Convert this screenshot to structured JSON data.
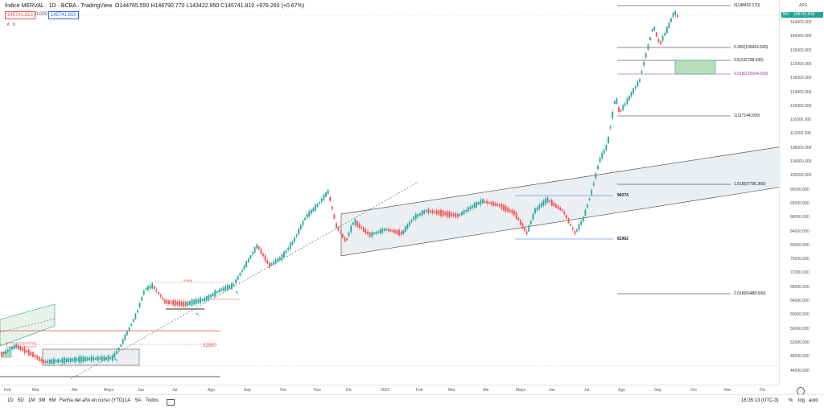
{
  "header": {
    "symbol": "Índice MERVAL · 1D · BCBA · TradingView",
    "ohlc": "O144765.550 H146790.770 L143422.950 C145741.810 +976.260 (+0.67%)",
    "price_sell": "145741.810",
    "spread": "0.000",
    "price_buy": "145741.810",
    "indicator_toggle": "∧",
    "indicator_count": "8"
  },
  "price_axis": {
    "currency": "ARS",
    "last_price": "145741.810",
    "last_tag": "MV",
    "ticks": [
      "144000.000",
      "140000.000",
      "136000.000",
      "132000.000",
      "128000.000",
      "124000.000",
      "120000.000",
      "116000.000",
      "112000.000",
      "108000.000",
      "104000.000",
      "100000.000",
      "96000.000",
      "92000.000",
      "88000.000",
      "84000.000",
      "80000.000",
      "76000.000",
      "72000.000",
      "68000.000",
      "64000.000",
      "60000.000",
      "56000.000",
      "52000.000",
      "48000.000",
      "44000.000"
    ]
  },
  "time_axis": {
    "ticks": [
      "Feb",
      "Mar",
      "Abr",
      "Mayo",
      "Jun",
      "Jul",
      "Ago",
      "Sep",
      "Oct",
      "Nov",
      "Dic",
      "2022",
      "Feb",
      "Mar",
      "Abr",
      "Mayo",
      "Jun",
      "Jul",
      "Ago",
      "Sep",
      "Oct",
      "Nov",
      "Dic"
    ]
  },
  "fib_levels": [
    {
      "label": "0(148452.170)",
      "color": "#131722"
    },
    {
      "label": "0.382(136492.640)",
      "color": "#131722"
    },
    {
      "label": "0.5(132798.335)",
      "color": "#131722"
    },
    {
      "label": "0.618(129104.030)",
      "color": "#9c27b0"
    },
    {
      "label": "1(117144.500)",
      "color": "#131722"
    },
    {
      "label": "1.618(97796.360)",
      "color": "#131722"
    },
    {
      "label": "2.618(66488.690)",
      "color": "#131722"
    }
  ],
  "annotations": {
    "level_94374": "94374",
    "level_81962": "81962",
    "level_52500": "52500",
    "small_red_label": "69888"
  },
  "bottom_bar": {
    "timeframes": [
      "1D",
      "5D",
      "1M",
      "3M",
      "6M",
      "Fecha del año en curso (YTD)",
      "1A",
      "5A",
      "Todos"
    ],
    "clock": "16:35:13 (UTC-3)",
    "percent": "%",
    "log": "log",
    "auto": "auto"
  },
  "colors": {
    "up": "#26a69a",
    "down": "#ef5350",
    "channel": "#eceff2",
    "green_box": "#b7deb8",
    "blue_line": "#2962ff",
    "red_line": "#ef5350"
  }
}
